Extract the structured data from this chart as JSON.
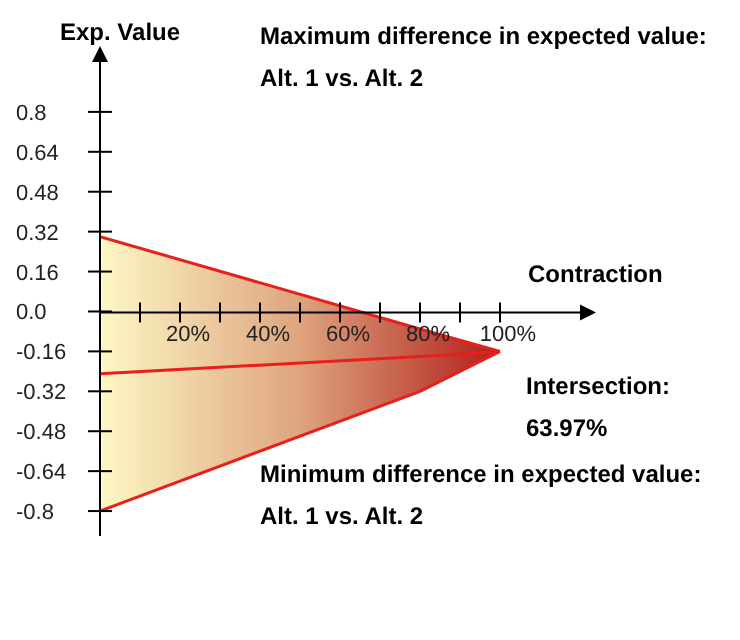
{
  "chart_data": {
    "type": "line",
    "ylabel": "Exp. Value",
    "xlabel": "Contraction",
    "x": [
      0,
      80,
      100
    ],
    "series": [
      {
        "color": "#e8201c",
        "values": [
          0.3,
          -0.07,
          -0.16
        ]
      },
      {
        "color": "#e8201c",
        "values": [
          -0.25,
          -0.18,
          -0.16
        ],
        "lower": [
          -0.8,
          -0.32,
          -0.16
        ],
        "upper": [
          0.3,
          -0.07,
          -0.16
        ]
      },
      {
        "color": "#e8201c",
        "values": [
          -0.8,
          -0.32,
          -0.16
        ]
      }
    ],
    "xlim": [
      0,
      120
    ],
    "xticks": [
      {
        "value": 10,
        "label": null
      },
      {
        "value": 20,
        "label": "20%"
      },
      {
        "value": 30,
        "label": null
      },
      {
        "value": 40,
        "label": "40%"
      },
      {
        "value": 50,
        "label": null
      },
      {
        "value": 60,
        "label": "60%"
      },
      {
        "value": 70,
        "label": null
      },
      {
        "value": 80,
        "label": "80%"
      },
      {
        "value": 90,
        "label": null
      },
      {
        "value": 100,
        "label": "100%"
      }
    ],
    "ylim": [
      -0.9,
      1.0
    ],
    "yticks": [
      -0.8,
      -0.64,
      -0.48,
      -0.32,
      -0.16,
      {
        "value": 0,
        "label": "0.0"
      },
      0.16,
      0.32,
      0.48,
      0.64,
      0.8
    ],
    "grid": false,
    "legend": false,
    "marker": "none",
    "annotations": [
      "Maximum difference in expected value:\nAlt. 1 vs. Alt. 2",
      "Intersection:\n63.97%",
      "Minimum difference in expected value:\nAlt. 1 vs. Alt. 2"
    ]
  }
}
